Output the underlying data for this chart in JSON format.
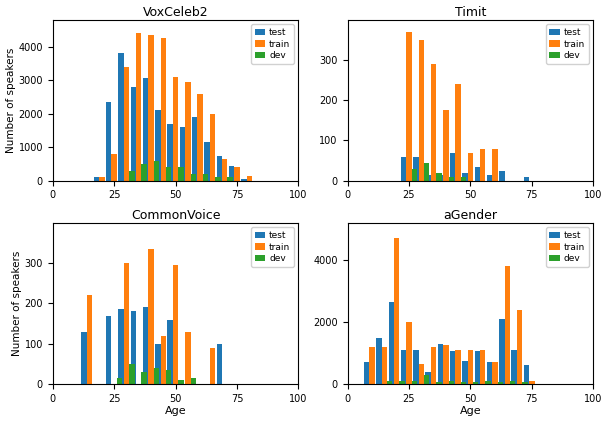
{
  "titles": [
    "VoxCeleb2",
    "Timit",
    "CommonVoice",
    "aGender"
  ],
  "colors": {
    "test": "#1f77b4",
    "train": "#ff7f0e",
    "dev": "#2ca02c"
  },
  "bar_width": 2.2,
  "datasets": {
    "VoxCeleb2": {
      "ages": [
        20,
        25,
        30,
        35,
        40,
        45,
        50,
        55,
        60,
        65,
        70,
        75,
        80
      ],
      "test": [
        100,
        2350,
        3800,
        2800,
        3050,
        2100,
        1700,
        1600,
        1900,
        1150,
        750,
        450,
        50
      ],
      "train": [
        100,
        800,
        3400,
        4400,
        4350,
        4250,
        3100,
        2950,
        2600,
        2000,
        650,
        400,
        150
      ],
      "dev": [
        0,
        0,
        300,
        500,
        600,
        400,
        400,
        200,
        200,
        100,
        100,
        0,
        0
      ]
    },
    "Timit": {
      "ages": [
        25,
        30,
        35,
        40,
        45,
        50,
        55,
        60,
        65,
        75
      ],
      "test": [
        60,
        60,
        15,
        15,
        70,
        20,
        35,
        15,
        25,
        10
      ],
      "train": [
        370,
        350,
        290,
        175,
        240,
        70,
        80,
        80,
        0,
        0
      ],
      "dev": [
        30,
        45,
        20,
        10,
        10,
        0,
        0,
        0,
        0,
        0
      ]
    },
    "CommonVoice": {
      "ages": [
        15,
        25,
        30,
        35,
        40,
        45,
        50,
        55,
        65,
        70,
        75
      ],
      "test": [
        130,
        170,
        185,
        180,
        190,
        100,
        160,
        0,
        0,
        100,
        0
      ],
      "train": [
        220,
        0,
        300,
        0,
        335,
        120,
        295,
        130,
        90,
        0,
        0
      ],
      "dev": [
        0,
        15,
        50,
        30,
        40,
        35,
        10,
        15,
        0,
        0,
        0
      ]
    },
    "aGender": {
      "ages": [
        10,
        15,
        20,
        25,
        30,
        35,
        40,
        45,
        50,
        55,
        60,
        65,
        70,
        75
      ],
      "test": [
        700,
        1500,
        2650,
        1100,
        1100,
        400,
        1300,
        1050,
        750,
        1050,
        700,
        2100,
        1100,
        600
      ],
      "train": [
        1200,
        1200,
        4700,
        2000,
        650,
        1200,
        1250,
        1100,
        1100,
        1100,
        700,
        3800,
        2400,
        100
      ],
      "dev": [
        0,
        100,
        100,
        100,
        300,
        50,
        100,
        50,
        50,
        100,
        50,
        100,
        50,
        0
      ]
    }
  },
  "ylims": {
    "VoxCeleb2": [
      0,
      4800
    ],
    "Timit": [
      0,
      400
    ],
    "CommonVoice": [
      0,
      400
    ],
    "aGender": [
      0,
      5200
    ]
  },
  "yticks": {
    "VoxCeleb2": [
      0,
      1000,
      2000,
      3000,
      4000
    ],
    "Timit": [
      0,
      100,
      200,
      300
    ],
    "CommonVoice": [
      0,
      100,
      200,
      300
    ],
    "aGender": [
      0,
      2000,
      4000
    ]
  }
}
